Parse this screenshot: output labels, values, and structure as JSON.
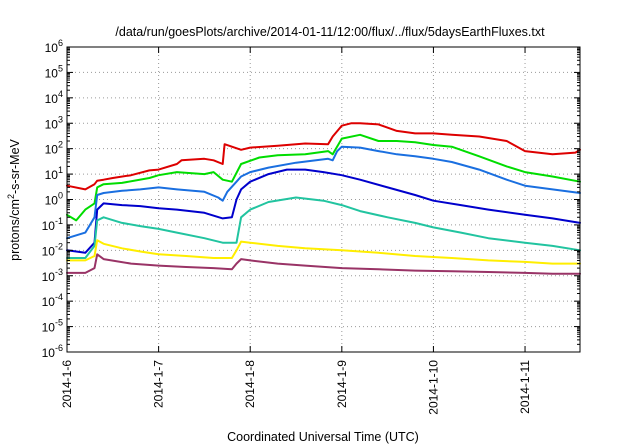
{
  "chart_data": {
    "type": "line",
    "title": "/data/run/goesPlots/archive/2014-01-11/12:00/flux/../flux/5daysEarthFluxes.txt",
    "xlabel": "Coordinated Universal Time (UTC)",
    "ylabel": {
      "pre": "protons/cm",
      "sup": "2",
      "post": "-s-sr-MeV"
    },
    "xlim": [
      0,
      5.6
    ],
    "ylim_log10": [
      -6,
      6
    ],
    "y_scale": "log",
    "grid": true,
    "x_ticks": [
      {
        "x": 0,
        "label": "2014-1-6"
      },
      {
        "x": 1,
        "label": "2014-1-7"
      },
      {
        "x": 2,
        "label": "2014-1-8"
      },
      {
        "x": 3,
        "label": "2014-1-9"
      },
      {
        "x": 4,
        "label": "2014-1-10"
      },
      {
        "x": 5,
        "label": "2014-1-11"
      }
    ],
    "y_ticks": [
      {
        "exp": -6,
        "base": "10",
        "sup": "-6"
      },
      {
        "exp": -5,
        "base": "10",
        "sup": "-5"
      },
      {
        "exp": -4,
        "base": "10",
        "sup": "-4"
      },
      {
        "exp": -3,
        "base": "10",
        "sup": "-3"
      },
      {
        "exp": -2,
        "base": "10",
        "sup": "-2"
      },
      {
        "exp": -1,
        "base": "10",
        "sup": "-1"
      },
      {
        "exp": 0,
        "base": "10",
        "sup": "0"
      },
      {
        "exp": 1,
        "base": "10",
        "sup": "1"
      },
      {
        "exp": 2,
        "base": "10",
        "sup": "2"
      },
      {
        "exp": 3,
        "base": "10",
        "sup": "3"
      },
      {
        "exp": 4,
        "base": "10",
        "sup": "4"
      },
      {
        "exp": 5,
        "base": "10",
        "sup": "5"
      },
      {
        "exp": 6,
        "base": "10",
        "sup": "6"
      }
    ],
    "series": [
      {
        "color": "#dd0000",
        "x": [
          0,
          0.2,
          0.3,
          0.33,
          0.4,
          0.5,
          0.7,
          0.9,
          1.0,
          1.2,
          1.25,
          1.5,
          1.6,
          1.7,
          1.72,
          1.9,
          2.0,
          2.3,
          2.6,
          2.85,
          2.9,
          3.0,
          3.1,
          3.2,
          3.4,
          3.6,
          3.8,
          4.0,
          4.2,
          4.5,
          4.8,
          5.0,
          5.3,
          5.55,
          5.6
        ],
        "y": [
          3.5,
          2.5,
          4,
          5.5,
          6,
          7,
          9,
          14,
          15,
          25,
          35,
          40,
          35,
          25,
          150,
          90,
          110,
          130,
          160,
          150,
          300,
          800,
          1000,
          1000,
          900,
          500,
          400,
          400,
          350,
          300,
          200,
          80,
          60,
          70,
          90
        ]
      },
      {
        "color": "#00dd00",
        "x": [
          0,
          0.1,
          0.2,
          0.3,
          0.33,
          0.4,
          0.6,
          0.9,
          1.0,
          1.2,
          1.5,
          1.6,
          1.7,
          1.8,
          1.9,
          2.1,
          2.3,
          2.6,
          2.85,
          2.9,
          3.0,
          3.2,
          3.4,
          3.6,
          3.8,
          4.0,
          4.2,
          4.5,
          4.8,
          5.0,
          5.3,
          5.6
        ],
        "y": [
          0.25,
          0.15,
          0.4,
          0.7,
          3,
          4,
          4.5,
          7,
          9,
          12,
          10,
          12,
          6,
          5,
          25,
          45,
          55,
          60,
          80,
          60,
          250,
          350,
          200,
          200,
          180,
          140,
          120,
          50,
          20,
          12,
          8,
          5
        ]
      },
      {
        "color": "#1a6fe0",
        "x": [
          0,
          0.2,
          0.3,
          0.33,
          0.4,
          0.6,
          0.8,
          1.0,
          1.2,
          1.5,
          1.65,
          1.7,
          1.75,
          1.85,
          1.9,
          2.0,
          2.2,
          2.5,
          2.85,
          2.9,
          2.95,
          3.0,
          3.2,
          3.4,
          3.6,
          3.8,
          4.0,
          4.2,
          4.5,
          4.8,
          5.0,
          5.3,
          5.6
        ],
        "y": [
          0.03,
          0.05,
          0.2,
          1.5,
          1.8,
          2.2,
          2.5,
          3,
          2.5,
          2,
          1.2,
          0.9,
          2,
          5,
          8,
          12,
          18,
          28,
          40,
          35,
          80,
          120,
          110,
          80,
          60,
          50,
          40,
          30,
          15,
          6,
          3.5,
          2.5,
          1.8
        ]
      },
      {
        "color": "#0000cc",
        "x": [
          0,
          0.2,
          0.3,
          0.33,
          0.4,
          0.6,
          0.8,
          1.0,
          1.2,
          1.5,
          1.7,
          1.8,
          1.85,
          1.9,
          2.0,
          2.2,
          2.4,
          2.6,
          2.8,
          3.0,
          3.2,
          3.5,
          3.8,
          4.0,
          4.3,
          4.6,
          5.0,
          5.3,
          5.6
        ],
        "y": [
          0.01,
          0.008,
          0.02,
          0.4,
          0.7,
          0.6,
          0.55,
          0.45,
          0.4,
          0.3,
          0.18,
          0.2,
          1,
          2.5,
          5,
          10,
          15,
          15,
          12,
          9,
          6,
          3,
          1.5,
          0.9,
          0.6,
          0.4,
          0.25,
          0.18,
          0.12
        ]
      },
      {
        "color": "#22c4a0",
        "x": [
          0,
          0.2,
          0.3,
          0.33,
          0.4,
          0.6,
          0.8,
          1.0,
          1.2,
          1.5,
          1.7,
          1.85,
          1.9,
          2.0,
          2.2,
          2.5,
          2.8,
          3.0,
          3.2,
          3.5,
          3.8,
          4.0,
          4.3,
          4.6,
          5.0,
          5.3,
          5.6
        ],
        "y": [
          0.005,
          0.005,
          0.015,
          0.15,
          0.2,
          0.12,
          0.09,
          0.07,
          0.05,
          0.03,
          0.02,
          0.02,
          0.2,
          0.4,
          0.8,
          1.2,
          0.9,
          0.6,
          0.35,
          0.2,
          0.12,
          0.08,
          0.05,
          0.03,
          0.02,
          0.015,
          0.01
        ]
      },
      {
        "color": "#ffee00",
        "x": [
          0,
          0.2,
          0.3,
          0.33,
          0.4,
          0.6,
          0.8,
          1.0,
          1.3,
          1.6,
          1.8,
          1.85,
          1.9,
          2.0,
          2.3,
          2.6,
          3.0,
          3.4,
          3.8,
          4.2,
          4.6,
          5.0,
          5.3,
          5.6
        ],
        "y": [
          0.004,
          0.004,
          0.006,
          0.025,
          0.018,
          0.012,
          0.009,
          0.007,
          0.006,
          0.005,
          0.005,
          0.01,
          0.022,
          0.02,
          0.015,
          0.012,
          0.01,
          0.008,
          0.006,
          0.005,
          0.004,
          0.0035,
          0.003,
          0.003
        ]
      },
      {
        "color": "#993366",
        "x": [
          0,
          0.2,
          0.3,
          0.33,
          0.4,
          0.7,
          1.0,
          1.3,
          1.6,
          1.8,
          1.85,
          1.9,
          2.0,
          2.3,
          2.6,
          3.0,
          3.4,
          3.8,
          4.2,
          4.6,
          5.0,
          5.3,
          5.6
        ],
        "y": [
          0.0013,
          0.0013,
          0.002,
          0.007,
          0.0045,
          0.003,
          0.0025,
          0.0022,
          0.002,
          0.0018,
          0.003,
          0.0045,
          0.004,
          0.003,
          0.0025,
          0.002,
          0.0018,
          0.0016,
          0.0015,
          0.0014,
          0.0013,
          0.0012,
          0.0012
        ]
      }
    ]
  }
}
